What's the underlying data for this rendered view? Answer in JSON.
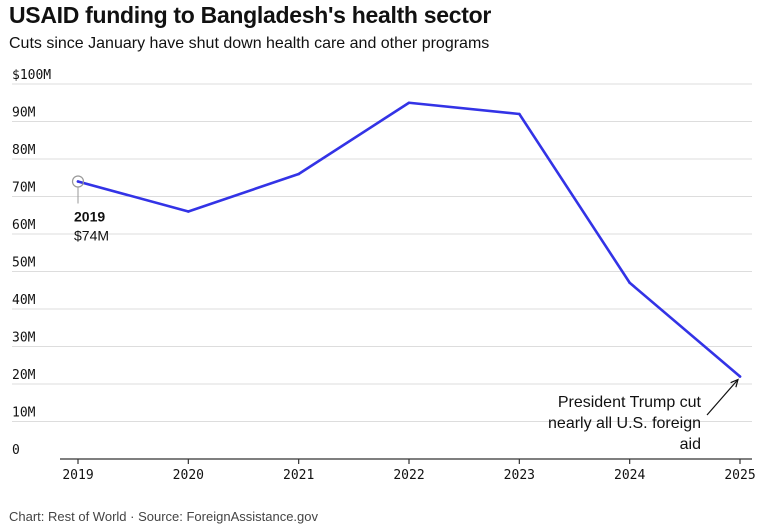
{
  "title": "USAID funding to Bangladesh's health sector",
  "subtitle": "Cuts since January have shut down health care and other programs",
  "footer": "Chart: Rest of World · Source: ForeignAssistance.gov",
  "colors": {
    "line": "#3333e6",
    "grid": "#dddddd",
    "axis": "#333333",
    "marker": "#999999"
  },
  "chart_data": {
    "type": "line",
    "title": "USAID funding to Bangladesh's health sector",
    "xlabel": "",
    "ylabel": "",
    "x": [
      2019,
      2020,
      2021,
      2022,
      2023,
      2024,
      2025
    ],
    "series": [
      {
        "name": "USAID funding",
        "values": [
          74,
          66,
          76,
          95,
          92,
          47,
          22
        ]
      }
    ],
    "ylim": [
      0,
      100
    ],
    "yticks": [
      0,
      10,
      20,
      30,
      40,
      50,
      60,
      70,
      80,
      90,
      100
    ],
    "ytick_labels": [
      "0",
      "10M",
      "20M",
      "30M",
      "40M",
      "50M",
      "60M",
      "70M",
      "80M",
      "90M",
      "$100M"
    ],
    "xtick_labels": [
      "2019",
      "2020",
      "2021",
      "2022",
      "2023",
      "2024",
      "2025"
    ],
    "grid": true,
    "annotations": {
      "start": {
        "x": 2019,
        "y": 74,
        "year": "2019",
        "value": "$74M"
      },
      "end": {
        "x": 2025,
        "y": 22,
        "lines": [
          "President Trump cut",
          "nearly all U.S. foreign",
          "aid"
        ]
      }
    }
  }
}
